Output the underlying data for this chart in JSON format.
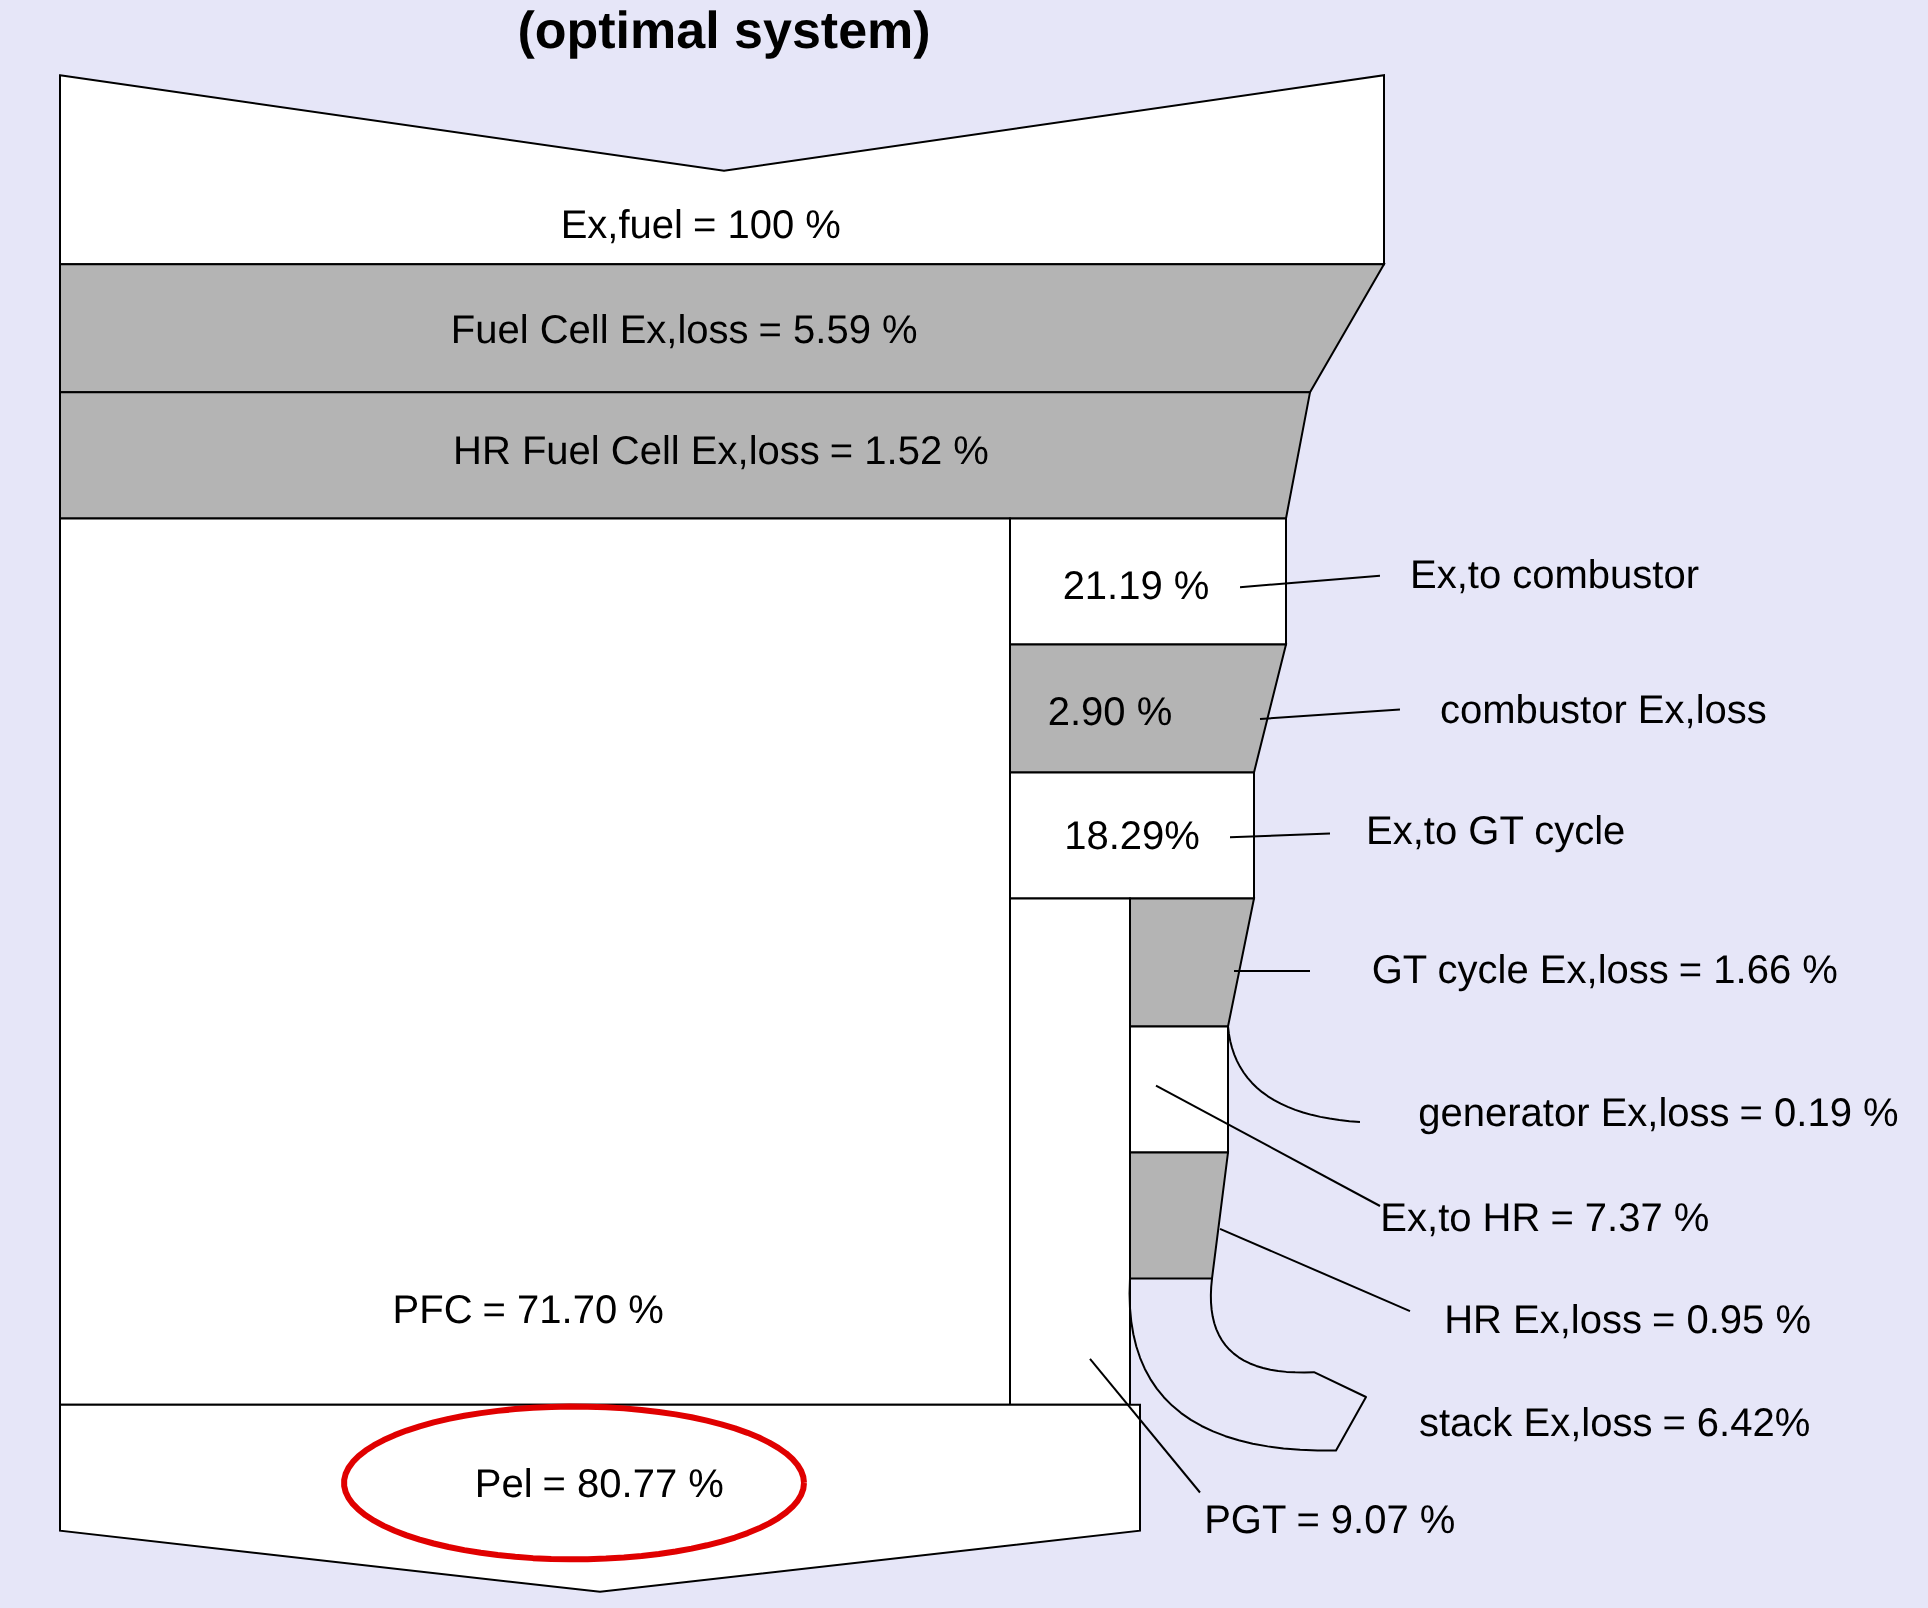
{
  "chart_data": {
    "type": "other",
    "title": "(optimal system)",
    "categories": [
      "Ex,fuel",
      "Fuel Cell Ex,loss",
      "HR Fuel Cell Ex,loss",
      "Ex,to combustor",
      "combustor Ex,loss",
      "Ex,to GT cycle",
      "GT cycle Ex,loss",
      "generator Ex,loss",
      "Ex,to HR",
      "HR Ex,loss",
      "stack Ex,loss",
      "PGT",
      "PFC",
      "Pel"
    ],
    "values": [
      100,
      5.59,
      1.52,
      21.19,
      2.9,
      18.29,
      1.66,
      0.19,
      7.37,
      0.95,
      6.42,
      9.07,
      71.7,
      80.77
    ],
    "value_labels": [
      "= 100 %",
      "= 5.59 %",
      "= 1.52 %",
      "21.19 %",
      "2.90 %",
      "18.29%",
      "= 1.66 %",
      "= 0.19 %",
      "= 7.37 %",
      "= 0.95 %",
      "= 6.42%",
      "= 9.07 %",
      "= 71.70 %",
      "= 80.77 %"
    ]
  }
}
